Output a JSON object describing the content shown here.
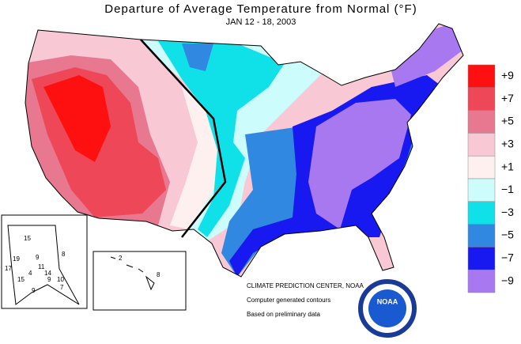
{
  "header": {
    "title": "Departure of Average Temperature from Normal (°F)",
    "subtitle": "JAN 12 - 18, 2003"
  },
  "legend": [
    {
      "label": "+9",
      "color": "#ff1010"
    },
    {
      "label": "+7",
      "color": "#ee4858"
    },
    {
      "label": "+5",
      "color": "#e87890"
    },
    {
      "label": "+3",
      "color": "#f8c8d4"
    },
    {
      "label": "+1",
      "color": "#fff0f0"
    },
    {
      "label": "−1",
      "color": "#ccfcfc"
    },
    {
      "label": "−3",
      "color": "#10e0e8"
    },
    {
      "label": "−5",
      "color": "#3088e0"
    },
    {
      "label": "−7",
      "color": "#1818f0"
    },
    {
      "label": "−9",
      "color": "#a878f0"
    }
  ],
  "alaska_labels": [
    "15",
    "19",
    "9",
    "8",
    "11",
    "17",
    "4",
    "14",
    "15",
    "9",
    "10",
    "7",
    "9"
  ],
  "hawaii_labels": [
    "2",
    "8"
  ],
  "credits": [
    "CLIMATE PREDICTION CENTER, NOAA",
    "Computer generated contours",
    "Based on preliminary data"
  ],
  "logo": "NOAA"
}
